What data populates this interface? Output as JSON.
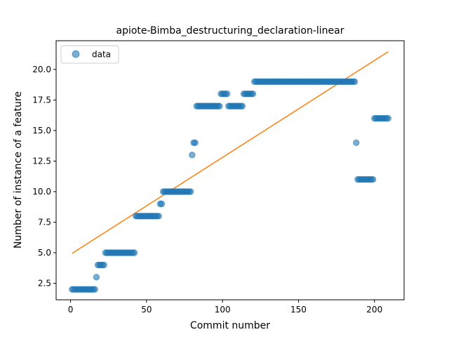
{
  "chart_data": {
    "type": "scatter",
    "title": "apiote-Bimba_destructuring_declaration-linear",
    "xlabel": "Commit number",
    "ylabel": "Number of instance of a feature",
    "xlim": [
      -9.5,
      219.5
    ],
    "ylim": [
      1.15,
      22.35
    ],
    "xticks": [
      0,
      50,
      100,
      150,
      200
    ],
    "xtick_labels": [
      "0",
      "50",
      "100",
      "150",
      "200"
    ],
    "yticks": [
      2.5,
      5.0,
      7.5,
      10.0,
      12.5,
      15.0,
      17.5,
      20.0
    ],
    "ytick_labels": [
      "2.5",
      "5.0",
      "7.5",
      "10.0",
      "12.5",
      "15.0",
      "17.5",
      "20.0"
    ],
    "legend": {
      "position": "top-left",
      "entries": [
        "data"
      ]
    },
    "colors": {
      "data": "#1f77b4",
      "fit": "#ff7f0e"
    },
    "series": [
      {
        "name": "data",
        "kind": "scatter",
        "runs": [
          {
            "x_start": 1,
            "x_end": 16,
            "y": 2
          },
          {
            "x_start": 17,
            "x_end": 17,
            "y": 3
          },
          {
            "x_start": 18,
            "x_end": 22,
            "y": 4
          },
          {
            "x_start": 23,
            "x_end": 42,
            "y": 5
          },
          {
            "x_start": 43,
            "x_end": 58,
            "y": 8
          },
          {
            "x_start": 59,
            "x_end": 60,
            "y": 9
          },
          {
            "x_start": 61,
            "x_end": 79,
            "y": 10
          },
          {
            "x_start": 80,
            "x_end": 80,
            "y": 13
          },
          {
            "x_start": 81,
            "x_end": 82,
            "y": 14
          },
          {
            "x_start": 83,
            "x_end": 98,
            "y": 17
          },
          {
            "x_start": 99,
            "x_end": 103,
            "y": 18
          },
          {
            "x_start": 104,
            "x_end": 113,
            "y": 17
          },
          {
            "x_start": 114,
            "x_end": 120,
            "y": 18
          },
          {
            "x_start": 121,
            "x_end": 187,
            "y": 19
          },
          {
            "x_start": 188,
            "x_end": 188,
            "y": 14
          },
          {
            "x_start": 189,
            "x_end": 199,
            "y": 11
          },
          {
            "x_start": 200,
            "x_end": 209,
            "y": 16
          }
        ]
      },
      {
        "name": "fit",
        "kind": "line",
        "x": [
          1,
          209
        ],
        "y": [
          4.95,
          21.45
        ]
      }
    ]
  }
}
